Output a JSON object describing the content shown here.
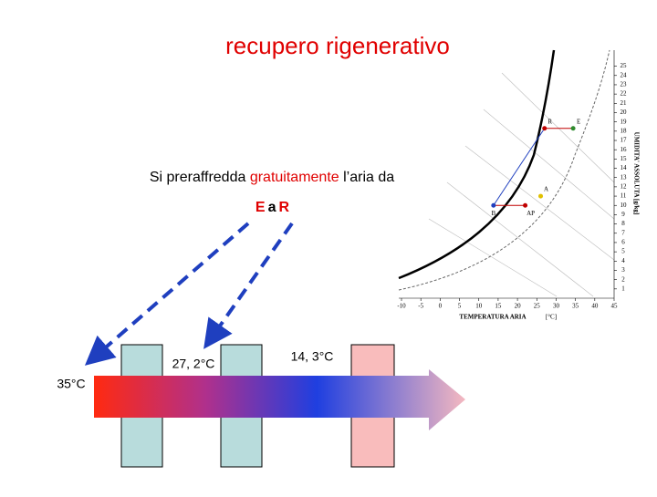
{
  "title": "recupero rigenerativo",
  "subtitle": {
    "part1": "Si preraffredda ",
    "part2": "gratuitamente",
    "part3": " l’aria da"
  },
  "route": {
    "from": "E",
    "mid": "a",
    "to": "R"
  },
  "temperatures": {
    "inlet": "35°C",
    "middle": "27, 2°C",
    "outlet": "14, 3°C"
  },
  "inset_chart": {
    "xlim": [
      -10,
      45
    ],
    "ylim": [
      0,
      25
    ],
    "xticks": [
      -10,
      -5,
      0,
      5,
      10,
      15,
      20,
      25,
      30,
      35,
      40,
      45
    ],
    "yticks": [
      1,
      2,
      3,
      4,
      5,
      6,
      7,
      8,
      9,
      10,
      11,
      12,
      13,
      14,
      15,
      16,
      17,
      18,
      19,
      20,
      21,
      22,
      23,
      24,
      25
    ],
    "xlabel": "TEMPERATURA ARIA",
    "xunit": "[°C]",
    "ylabel": "UMIDITA' ASSOLUTA [g/kg]",
    "points": [
      {
        "label": "R",
        "x": 27,
        "y": 18.3,
        "color": "#c00000"
      },
      {
        "label": "E",
        "x": 34.4,
        "y": 18.3,
        "color": "#2e8b2e"
      },
      {
        "label": "A",
        "x": 26,
        "y": 11,
        "color": "#e0c000"
      },
      {
        "label": "B",
        "x": 13.8,
        "y": 10,
        "color": "#1f3fbf"
      },
      {
        "label": "AP",
        "x": 22,
        "y": 10,
        "color": "#c00000"
      }
    ]
  }
}
